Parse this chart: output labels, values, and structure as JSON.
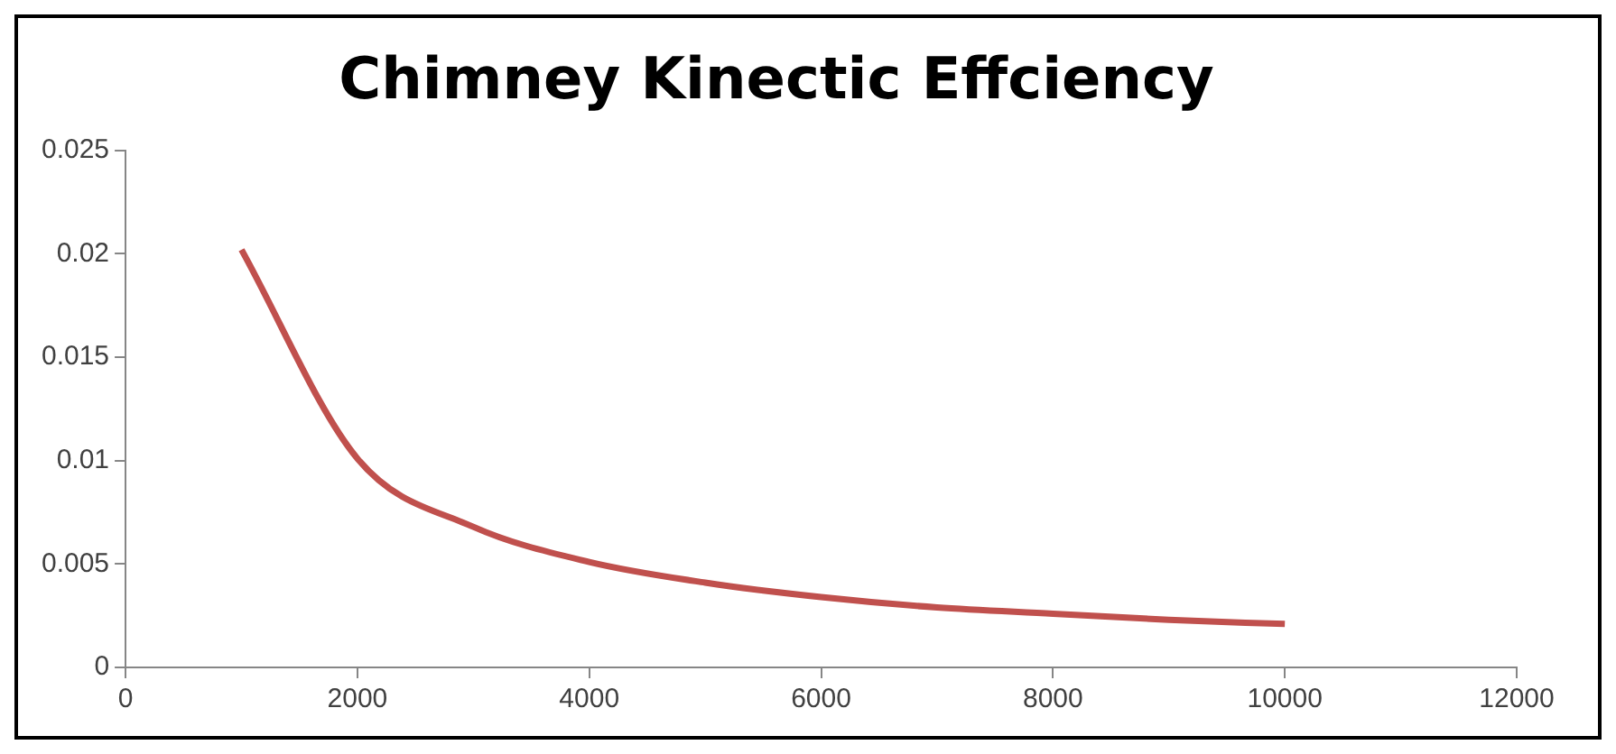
{
  "chart_data": {
    "type": "line",
    "title": "Chimney Kinectic Effciency",
    "x": [
      1000,
      2000,
      3000,
      4000,
      5000,
      6000,
      7000,
      8000,
      9000,
      10000
    ],
    "series": [
      {
        "color": "#c0504d",
        "values": [
          0.0202,
          0.0101,
          0.0068,
          0.0051,
          0.0041,
          0.0034,
          0.0029,
          0.0026,
          0.0023,
          0.0021
        ]
      }
    ],
    "xlim": [
      0,
      12000
    ],
    "xticks": [
      0,
      2000,
      4000,
      6000,
      8000,
      10000,
      12000
    ],
    "ylim": [
      0,
      0.025
    ],
    "yticks": [
      0,
      0.005,
      0.01,
      0.015,
      0.02,
      0.025
    ],
    "grid": false,
    "legend": false,
    "marker": "none",
    "line_style": "solid"
  }
}
